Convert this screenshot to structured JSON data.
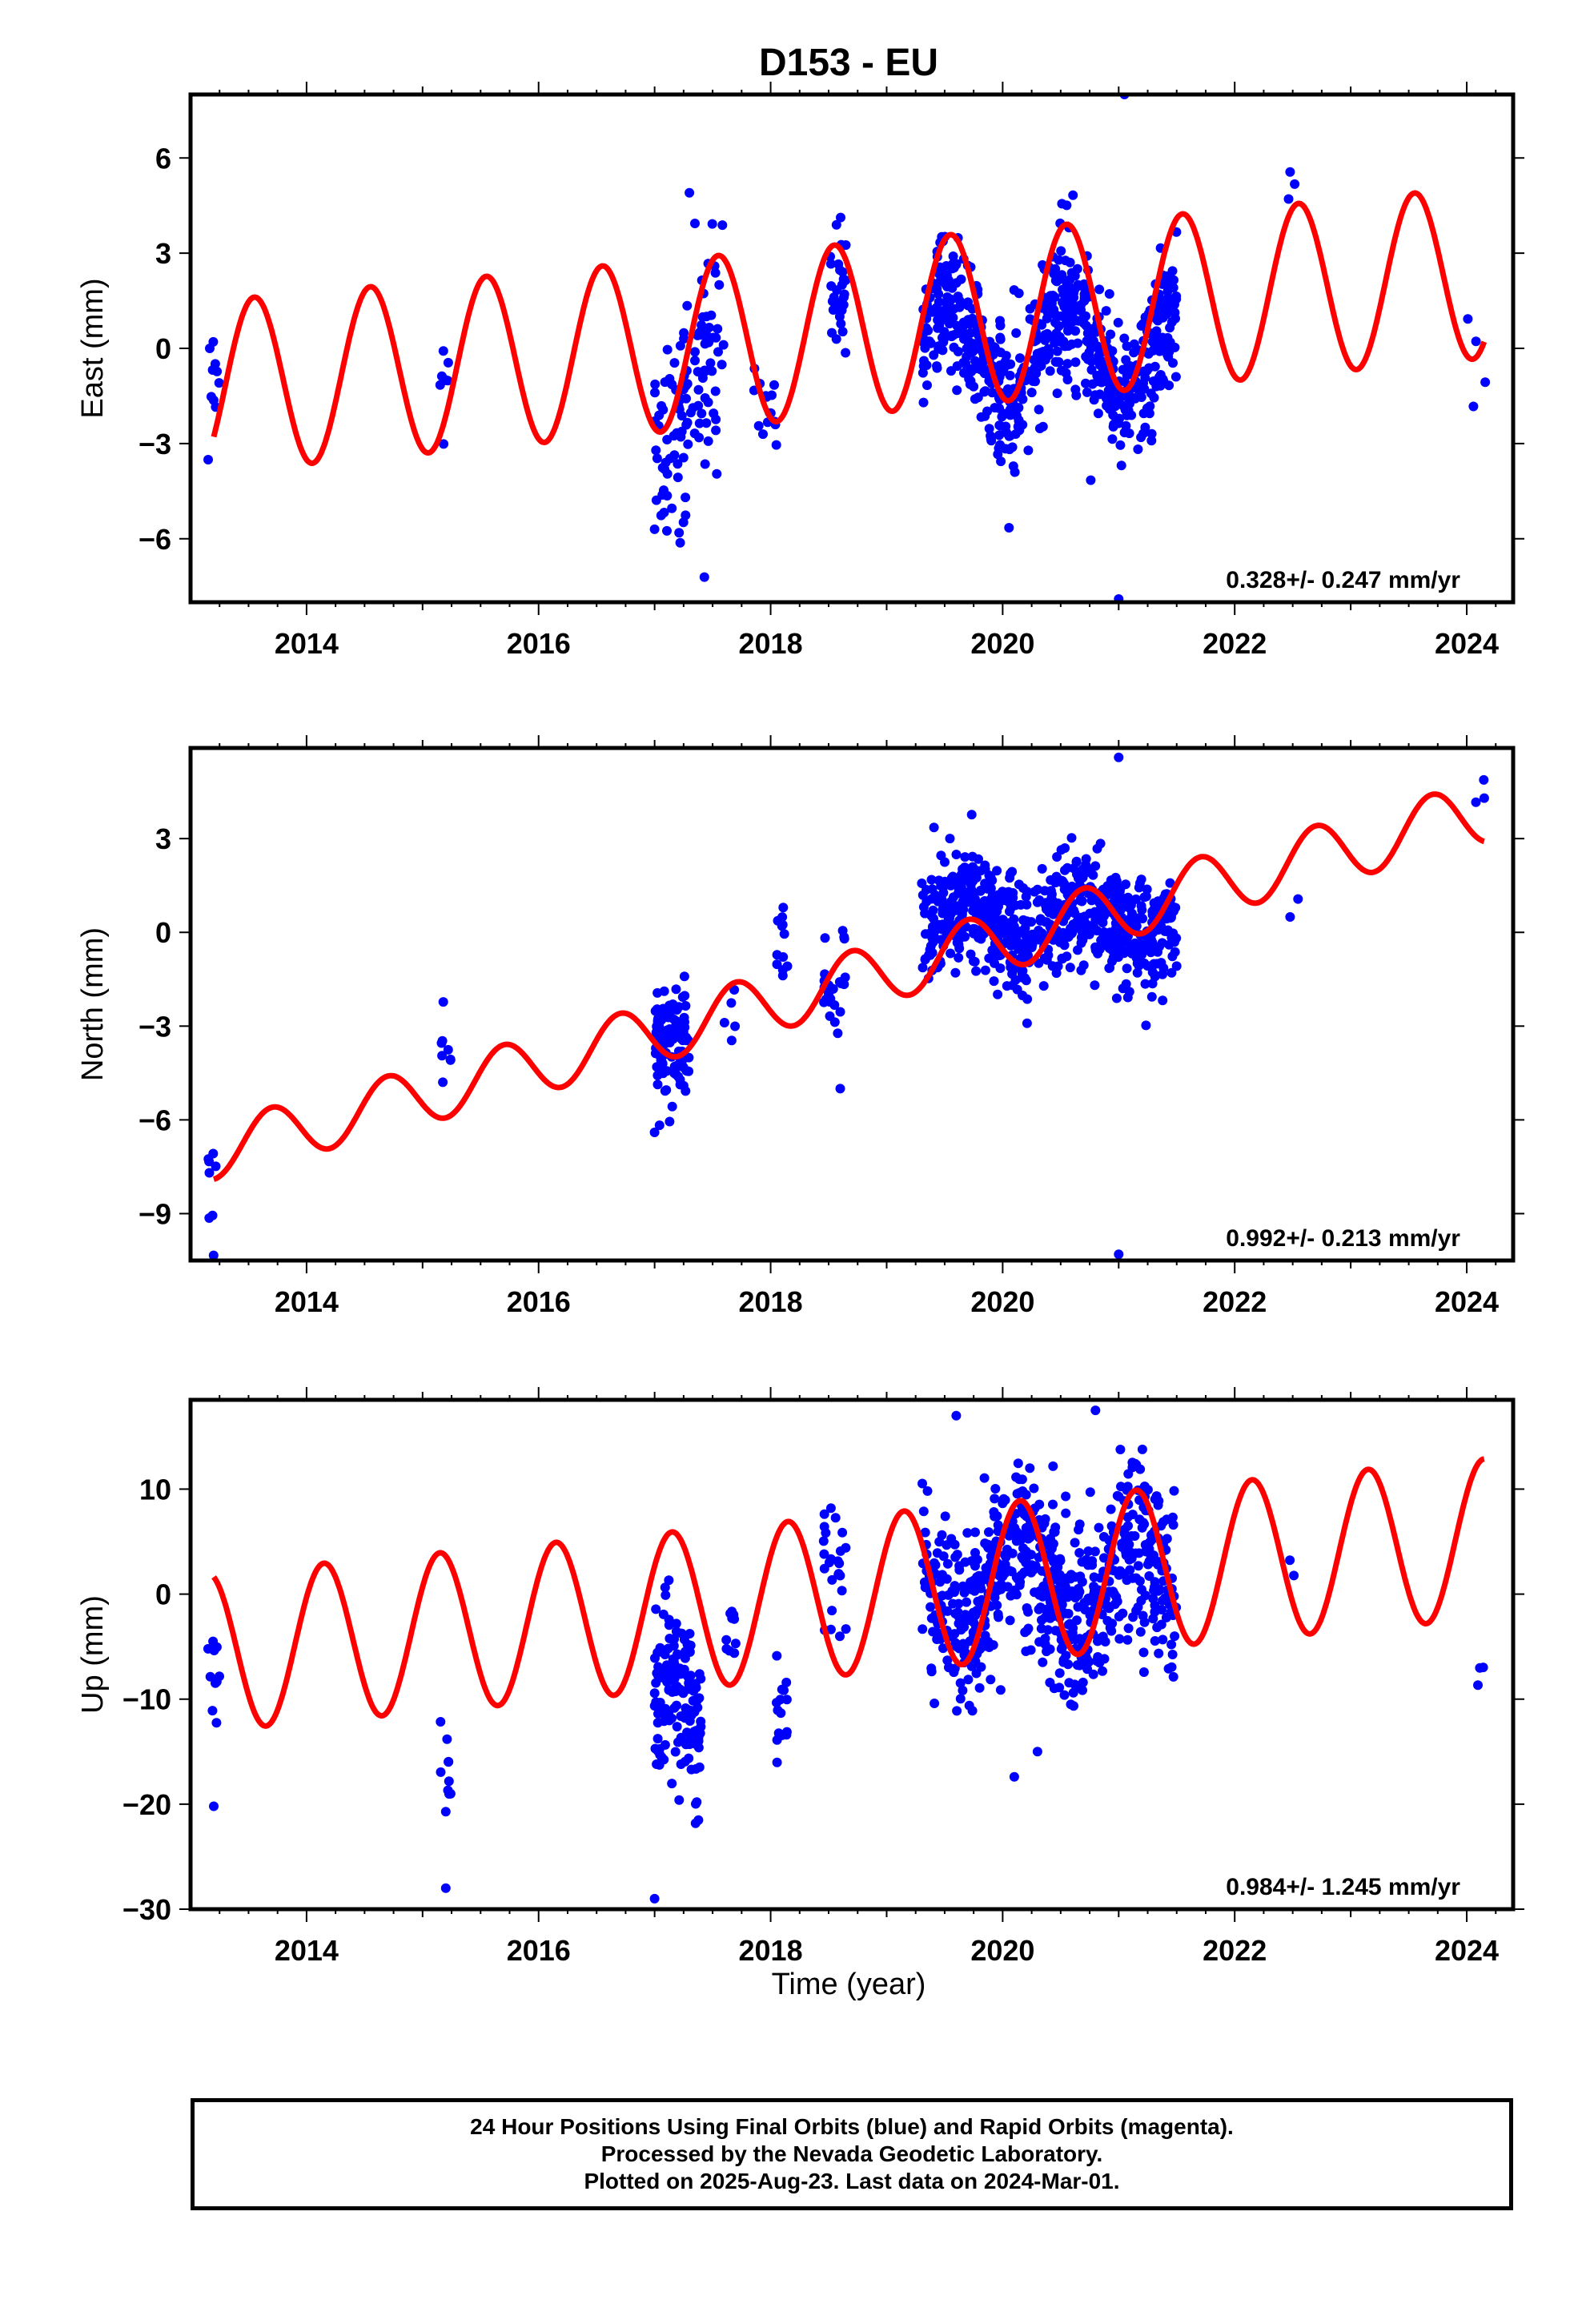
{
  "figure": {
    "title": "D153 - EU",
    "x_axis_label": "Time (year)"
  },
  "footer": {
    "line1": "24 Hour Positions Using Final Orbits (blue) and Rapid Orbits (magenta).",
    "line2": "Processed by the Nevada Geodetic Laboratory.",
    "line3": "Plotted on 2025-Aug-23. Last data on 2024-Mar-01."
  },
  "colors": {
    "points": "#0000ff",
    "model": "#ff0000",
    "frame": "#000000"
  },
  "chart_data": [
    {
      "type": "scatter",
      "title": "D153 - EU",
      "ylabel": "East (mm)",
      "xlabel": "",
      "xlim": [
        2013.0,
        2024.4
      ],
      "ylim": [
        -8,
        8
      ],
      "x_ticks": [
        "2014",
        "2016",
        "2018",
        "2020",
        "2022",
        "2024"
      ],
      "y_ticks": [
        "6",
        "3",
        "0",
        "−3",
        "−6"
      ],
      "rate_label": "0.328+/- 0.247 mm/yr",
      "model": {
        "rate_mm_yr": 0.328,
        "amp_start": 2.7,
        "amp_end": 2.7,
        "phase_year": 2013.3
      },
      "segments": [
        {
          "x": [
            2013.15,
            2013.25
          ],
          "center": 0.0,
          "spread": 1.4,
          "count": 10
        },
        {
          "x": [
            2015.15,
            2015.25
          ],
          "center": 0.2,
          "spread": 1.2,
          "count": 8
        },
        {
          "x": [
            2017.0,
            2017.6
          ],
          "center": -1.5,
          "spread": 2.8,
          "count": 120
        },
        {
          "x": [
            2017.85,
            2018.05
          ],
          "center": -0.5,
          "spread": 1.5,
          "count": 15
        },
        {
          "x": [
            2018.5,
            2018.65
          ],
          "center": 0.5,
          "spread": 1.6,
          "count": 30
        },
        {
          "x": [
            2019.3,
            2021.5
          ],
          "center": 0.0,
          "spread": 1.8,
          "count": 700
        },
        {
          "x": [
            2022.45,
            2022.55
          ],
          "center": 4.0,
          "spread": 0.5,
          "count": 3
        },
        {
          "x": [
            2024.0,
            2024.17
          ],
          "center": 0.3,
          "spread": 1.4,
          "count": 4
        }
      ],
      "outliers": [
        {
          "x": 2021.05,
          "y": 8.0
        },
        {
          "x": 2021.0,
          "y": -7.9
        },
        {
          "x": 2017.0,
          "y": -5.7
        },
        {
          "x": 2017.3,
          "y": 4.9
        }
      ],
      "series": [
        {
          "name": "",
          "kind": "points"
        },
        {
          "name": "",
          "kind": "model"
        }
      ],
      "grid": false,
      "legend": "none"
    },
    {
      "type": "scatter",
      "ylabel": "North (mm)",
      "xlabel": "",
      "xlim": [
        2013.0,
        2024.4
      ],
      "ylim": [
        -10.5,
        5.9
      ],
      "x_ticks": [
        "2014",
        "2016",
        "2018",
        "2020",
        "2022",
        "2024"
      ],
      "y_ticks": [
        "3",
        "0",
        "−3",
        "−6",
        "−9"
      ],
      "rate_label": "0.992+/- 0.213 mm/yr",
      "model": {
        "rate_mm_yr": 0.992,
        "amp_start": 0.9,
        "amp_end": 1.0,
        "phase_year": 2013.45
      },
      "segments": [
        {
          "x": [
            2013.15,
            2013.25
          ],
          "center": -8.3,
          "spread": 1.4,
          "count": 8
        },
        {
          "x": [
            2015.15,
            2015.25
          ],
          "center": -3.6,
          "spread": 1.0,
          "count": 8
        },
        {
          "x": [
            2017.0,
            2017.3
          ],
          "center": -3.2,
          "spread": 1.5,
          "count": 110
        },
        {
          "x": [
            2017.6,
            2017.7
          ],
          "center": -3.3,
          "spread": 1.0,
          "count": 5
        },
        {
          "x": [
            2018.05,
            2018.15
          ],
          "center": 0.0,
          "spread": 1.0,
          "count": 12
        },
        {
          "x": [
            2018.45,
            2018.65
          ],
          "center": -2.0,
          "spread": 1.2,
          "count": 25
        },
        {
          "x": [
            2019.3,
            2021.5
          ],
          "center": 0.4,
          "spread": 1.5,
          "count": 700
        },
        {
          "x": [
            2022.45,
            2022.55
          ],
          "center": 0.3,
          "spread": 0.6,
          "count": 2
        },
        {
          "x": [
            2024.0,
            2024.2
          ],
          "center": 4.9,
          "spread": 0.6,
          "count": 3
        }
      ],
      "outliers": [
        {
          "x": 2021.0,
          "y": -10.3
        },
        {
          "x": 2021.0,
          "y": 5.6
        },
        {
          "x": 2017.0,
          "y": -6.4
        },
        {
          "x": 2018.6,
          "y": -5.0
        }
      ],
      "series": [
        {
          "name": "",
          "kind": "points"
        },
        {
          "name": "",
          "kind": "model"
        }
      ],
      "grid": false,
      "legend": "none"
    },
    {
      "type": "scatter",
      "ylabel": "Up (mm)",
      "xlabel": "Time (year)",
      "xlim": [
        2013.0,
        2024.4
      ],
      "ylim": [
        -30,
        18.5
      ],
      "x_ticks": [
        "2014",
        "2016",
        "2018",
        "2020",
        "2022",
        "2024"
      ],
      "y_ticks": [
        "10",
        "0",
        "−10",
        "−20",
        "−30"
      ],
      "rate_label": "0.984+/- 1.245 mm/yr",
      "model": {
        "rate_mm_yr": 0.984,
        "amp_start": 7.5,
        "amp_end": 7.6,
        "phase_year": 2012.9
      },
      "segments": [
        {
          "x": [
            2013.15,
            2013.25
          ],
          "center": -12.0,
          "spread": 4.5,
          "count": 10
        },
        {
          "x": [
            2015.15,
            2015.25
          ],
          "center": -22.0,
          "spread": 4.0,
          "count": 10
        },
        {
          "x": [
            2017.0,
            2017.4
          ],
          "center": -13.0,
          "spread": 6.5,
          "count": 150
        },
        {
          "x": [
            2017.6,
            2017.7
          ],
          "center": 0.5,
          "spread": 3.5,
          "count": 10
        },
        {
          "x": [
            2018.05,
            2018.15
          ],
          "center": -15.0,
          "spread": 4.0,
          "count": 15
        },
        {
          "x": [
            2018.45,
            2018.65
          ],
          "center": 6.0,
          "spread": 4.5,
          "count": 25
        },
        {
          "x": [
            2019.3,
            2021.5
          ],
          "center": 1.0,
          "spread": 7.0,
          "count": 700
        },
        {
          "x": [
            2022.45,
            2022.55
          ],
          "center": 5.0,
          "spread": 2.5,
          "count": 2
        },
        {
          "x": [
            2024.0,
            2024.2
          ],
          "center": -12.0,
          "spread": 1.2,
          "count": 3
        }
      ],
      "outliers": [
        {
          "x": 2017.0,
          "y": -29.0
        },
        {
          "x": 2015.2,
          "y": -28.0
        },
        {
          "x": 2013.2,
          "y": -20.2
        },
        {
          "x": 2020.1,
          "y": -17.4
        },
        {
          "x": 2020.3,
          "y": -15.0
        },
        {
          "x": 2020.8,
          "y": 17.5
        },
        {
          "x": 2019.6,
          "y": 17.0
        }
      ],
      "series": [
        {
          "name": "",
          "kind": "points"
        },
        {
          "name": "",
          "kind": "model"
        }
      ],
      "grid": false,
      "legend": "none"
    }
  ]
}
